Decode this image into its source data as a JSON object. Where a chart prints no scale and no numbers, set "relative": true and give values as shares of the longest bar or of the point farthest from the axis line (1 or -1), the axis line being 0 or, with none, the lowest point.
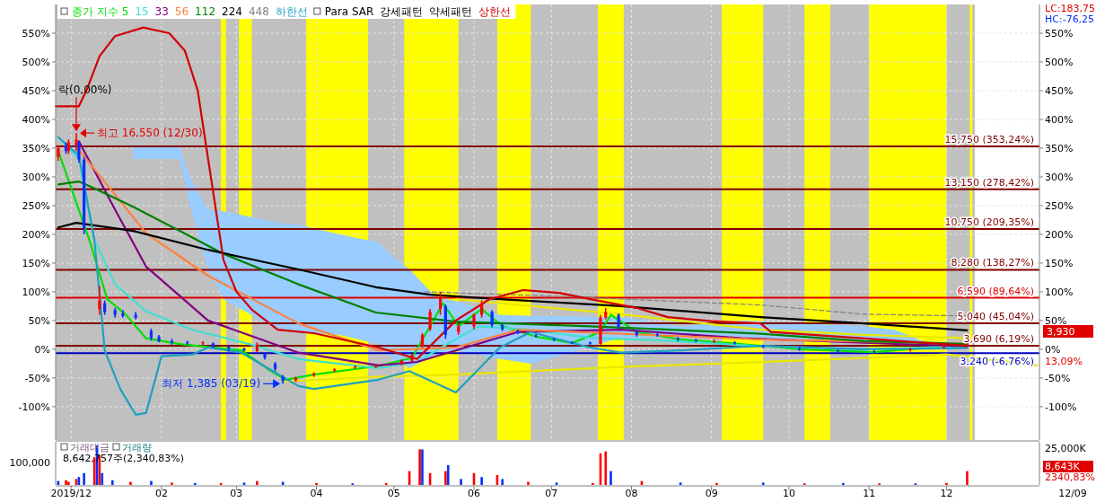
{
  "chart_data": [
    {
      "type": "candlestick",
      "xlim": [
        "2019-12-22",
        "2021-01-06"
      ],
      "xticks": [
        {
          "value": "2019-12-28",
          "label": null
        },
        {
          "value": "2020-02-01",
          "label": null
        },
        {
          "value": "2020-03-01",
          "label": null
        },
        {
          "value": "2020-04-01",
          "label": null
        },
        {
          "value": "2020-05-01",
          "label": null
        },
        {
          "value": "2020-06-01",
          "label": null
        },
        {
          "value": "2020-07-01",
          "label": null
        },
        {
          "value": "2020-08-01",
          "label": null
        },
        {
          "value": "2020-09-01",
          "label": null
        },
        {
          "value": "2020-10-01",
          "label": null
        },
        {
          "value": "2020-11-01",
          "label": null
        },
        {
          "value": "2020-12-01",
          "label": null
        }
      ],
      "ylim": [
        -158,
        600
      ],
      "yticks": [
        {
          "value": -100,
          "label": "-100%"
        },
        {
          "value": -50,
          "label": "-50%"
        },
        {
          "value": 0,
          "label": "0%"
        },
        {
          "value": 50,
          "label": "50%"
        },
        {
          "value": 100,
          "label": "100%"
        },
        {
          "value": 150,
          "label": "150%"
        },
        {
          "value": 200,
          "label": "200%"
        },
        {
          "value": 250,
          "label": "250%"
        },
        {
          "value": 300,
          "label": "300%"
        },
        {
          "value": 350,
          "label": "350%"
        },
        {
          "value": 400,
          "label": "400%"
        },
        {
          "value": 450,
          "label": "450%"
        },
        {
          "value": 500,
          "label": "500%"
        },
        {
          "value": 550,
          "label": "550%"
        }
      ],
      "y2lim": [
        -158,
        600
      ],
      "y2ticks": [
        {
          "value": -100,
          "label": "-100%"
        },
        {
          "value": -50,
          "label": "-50%"
        },
        {
          "value": 0,
          "label": "0%"
        },
        {
          "value": 50,
          "label": "50%"
        },
        {
          "value": 100,
          "label": "100%"
        },
        {
          "value": 150,
          "label": "150%"
        },
        {
          "value": 200,
          "label": "200%"
        },
        {
          "value": 250,
          "label": "250%"
        },
        {
          "value": 300,
          "label": "300%"
        },
        {
          "value": 350,
          "label": "350%"
        },
        {
          "value": 400,
          "label": "400%"
        },
        {
          "value": 450,
          "label": "450%"
        },
        {
          "value": 500,
          "label": "500%"
        },
        {
          "value": 550,
          "label": "550%"
        }
      ],
      "tick_labels": "y",
      "grid": true,
      "legend": "top left",
      "x": [
        "2019-12-23",
        "2019-12-26",
        "2019-12-27",
        "2019-12-30",
        "2019-12-31",
        "2020-01-02",
        "2020-01-08",
        "2020-01-10",
        "2020-01-14",
        "2020-01-17",
        "2020-01-22",
        "2020-01-28",
        "2020-01-31",
        "2020-02-05",
        "2020-02-11",
        "2020-02-17",
        "2020-02-21",
        "2020-02-27",
        "2020-03-04",
        "2020-03-09",
        "2020-03-12",
        "2020-03-16",
        "2020-03-19",
        "2020-03-24",
        "2020-03-31",
        "2020-04-08",
        "2020-04-16",
        "2020-04-24",
        "2020-05-04",
        "2020-05-08",
        "2020-05-12",
        "2020-05-15",
        "2020-05-19",
        "2020-05-21",
        "2020-05-26",
        "2020-06-01",
        "2020-06-04",
        "2020-06-08",
        "2020-06-12",
        "2020-06-18",
        "2020-06-25",
        "2020-07-02",
        "2020-07-09",
        "2020-07-16",
        "2020-07-20",
        "2020-07-22",
        "2020-07-27",
        "2020-08-03",
        "2020-08-11",
        "2020-08-19",
        "2020-08-26",
        "2020-09-02",
        "2020-09-10",
        "2020-09-21",
        "2020-10-05",
        "2020-10-20",
        "2020-11-03",
        "2020-11-17",
        "2020-11-30",
        "2020-12-09"
      ],
      "ohlc": [
        [
          335,
          355,
          328,
          350
        ],
        [
          355,
          360,
          340,
          345
        ],
        [
          345,
          365,
          340,
          360
        ],
        [
          355,
          376.3,
          345,
          365
        ],
        [
          360,
          362,
          325,
          330
        ],
        [
          330,
          335,
          200,
          210
        ],
        [
          70,
          110,
          60,
          85
        ],
        [
          80,
          85,
          60,
          65
        ],
        [
          68,
          72,
          55,
          60
        ],
        [
          62,
          68,
          55,
          58
        ],
        [
          60,
          65,
          52,
          55
        ],
        [
          32,
          36,
          15,
          20
        ],
        [
          22,
          25,
          12,
          14
        ],
        [
          14,
          18,
          8,
          12
        ],
        [
          12,
          15,
          8,
          11
        ],
        [
          11,
          14,
          7,
          12
        ],
        [
          10,
          12,
          2,
          4
        ],
        [
          4,
          6,
          -4,
          1
        ],
        [
          1,
          3,
          -4,
          -2
        ],
        [
          -3,
          12,
          -5,
          8
        ],
        [
          -8,
          -5,
          -18,
          -15
        ],
        [
          -25,
          -22,
          -38,
          -34
        ],
        [
          -48,
          -45,
          -60.1,
          -55
        ],
        [
          -54,
          -48,
          -57,
          -50
        ],
        [
          -45,
          -40,
          -48,
          -42
        ],
        [
          -37,
          -33,
          -40,
          -35
        ],
        [
          -32,
          -28,
          -34,
          -30
        ],
        [
          -30,
          -27,
          -33,
          -29
        ],
        [
          -24,
          -18,
          -28,
          -20
        ],
        [
          -20,
          -8,
          -22,
          -10
        ],
        [
          5,
          28,
          2,
          25
        ],
        [
          35,
          70,
          32,
          65
        ],
        [
          70,
          100,
          60,
          90
        ],
        [
          75,
          78,
          18,
          25
        ],
        [
          30,
          45,
          25,
          40
        ],
        [
          40,
          62,
          35,
          60
        ],
        [
          60,
          85,
          55,
          80
        ],
        [
          65,
          68,
          38,
          42
        ],
        [
          42,
          45,
          32,
          35
        ],
        [
          32,
          34,
          26,
          28
        ],
        [
          24,
          26,
          20,
          22
        ],
        [
          18,
          20,
          14,
          17
        ],
        [
          12,
          14,
          9,
          11
        ],
        [
          12,
          13,
          8,
          10
        ],
        [
          9,
          60,
          8,
          55
        ],
        [
          55,
          72,
          52,
          65
        ],
        [
          60,
          62,
          34,
          40
        ],
        [
          30,
          32,
          22,
          25
        ],
        [
          26,
          29,
          22,
          24
        ],
        [
          19,
          21,
          14,
          17
        ],
        [
          16,
          18,
          12,
          15
        ],
        [
          14,
          17,
          11,
          14
        ],
        [
          12,
          14,
          8,
          10
        ],
        [
          6,
          8,
          2,
          5
        ],
        [
          2,
          4,
          -3,
          0
        ],
        [
          -2,
          0,
          -6,
          -3
        ],
        [
          -4,
          -1,
          -8,
          -5
        ],
        [
          -1,
          2,
          -4,
          0
        ],
        [
          3,
          7,
          1,
          5
        ],
        [
          8,
          16,
          6,
          13.09
        ]
      ],
      "bands": [
        {
          "axis": "x",
          "from": "2019-12-22",
          "to": "2020-12-12",
          "color": "#c0c0c0"
        },
        {
          "axis": "x",
          "from": "2020-02-24",
          "to": "2020-02-26",
          "color": "#ffff00"
        },
        {
          "axis": "x",
          "from": "2020-03-02",
          "to": "2020-03-07",
          "color": "#ffff00"
        },
        {
          "axis": "x",
          "from": "2020-03-28",
          "to": "2020-04-21",
          "color": "#ffff00"
        },
        {
          "axis": "x",
          "from": "2020-05-05",
          "to": "2020-05-26",
          "color": "#ffff00"
        },
        {
          "axis": "x",
          "from": "2020-06-10",
          "to": "2020-06-23",
          "color": "#ffff00"
        },
        {
          "axis": "x",
          "from": "2020-07-19",
          "to": "2020-07-29",
          "color": "#ffff00"
        },
        {
          "axis": "x",
          "from": "2020-09-05",
          "to": "2020-09-21",
          "color": "#ffff00"
        },
        {
          "axis": "x",
          "from": "2020-10-07",
          "to": "2020-10-17",
          "color": "#ffff00"
        },
        {
          "axis": "x",
          "from": "2020-11-01",
          "to": "2020-12-01",
          "color": "#ffff00"
        },
        {
          "axis": "x",
          "from": "2020-12-10",
          "to": "2020-12-11",
          "color": "#ffff00"
        }
      ],
      "ref_lines": [
        {
          "axis": "y",
          "value": 353.24,
          "label": "15,750 (353,24%)",
          "color": "#800000"
        },
        {
          "axis": "y",
          "value": 278.42,
          "label": "13,150 (278,42%)",
          "color": "#800000"
        },
        {
          "axis": "y",
          "value": 209.35,
          "label": "10,750 (209,35%)",
          "color": "#800000"
        },
        {
          "axis": "y",
          "value": 138.27,
          "label": "8,280 (138,27%)",
          "color": "#800000"
        },
        {
          "axis": "y",
          "value": 89.64,
          "label": "6,590 (89,64%)",
          "color": "#e00000"
        },
        {
          "axis": "y",
          "value": 45.04,
          "label": "5,040 (45,04%)",
          "color": "#800000"
        },
        {
          "axis": "y",
          "value": 6.19,
          "label": "3,690 (6,19%)",
          "color": "#800000"
        },
        {
          "axis": "y",
          "value": -6.76,
          "label": "3,240 (-6,76%)",
          "color": "#0000c0"
        }
      ],
      "series": [
        {
          "type": "line",
          "color": "#99ccff",
          "x": [
            "2020-01-21",
            "2020-02-08",
            "2020-02-12",
            "2020-02-19",
            "2020-02-25",
            "2020-03-17",
            "2020-03-25",
            "2020-04-10",
            "2020-04-25",
            "2020-05-01",
            "2020-05-07",
            "2020-05-17",
            "2020-05-25",
            "2020-06-11",
            "2020-06-23",
            "2020-07-28",
            "2020-08-20",
            "2020-09-13",
            "2020-10-30",
            "2020-11-11",
            "2020-11-22",
            "2020-12-09"
          ],
          "values": [
            null,
            null,
            null,
            null,
            null,
            null,
            null,
            null,
            null,
            null,
            null,
            null,
            null,
            null,
            null,
            null,
            null,
            null,
            null,
            null,
            null,
            null
          ],
          "upper": [
            353,
            353,
            300,
            243,
            240,
            220,
            217,
            200,
            186,
            160,
            139,
            92,
            84,
            60,
            58,
            56,
            40,
            50,
            40,
            34,
            14,
            11
          ],
          "lower": [
            331,
            331,
            250,
            139,
            87,
            34,
            30,
            25,
            9,
            -20,
            -33,
            -10,
            -2,
            -17,
            -25,
            20,
            20,
            20,
            15,
            10,
            5,
            5
          ]
        },
        {
          "type": "line",
          "color": "#e8e800",
          "x": [
            "2020-05-25",
            "2020-07-28",
            "2020-09-20",
            "2020-10-30",
            "2020-12-09"
          ],
          "values": [
            87,
            61,
            34,
            25,
            19
          ]
        },
        {
          "type": "line",
          "color": "#e8e800",
          "x": [
            "2020-03-20",
            "2020-04-25",
            "2020-05-25",
            "2020-06-23",
            "2020-08-01",
            "2020-09-04",
            "2020-10-15",
            "2020-12-01",
            "2021-01-05"
          ],
          "values": [
            -56,
            -48,
            -44,
            -38,
            -30,
            -25,
            -18,
            -9,
            -28
          ]
        },
        {
          "name": "종가 지수 5",
          "type": "line",
          "color": "#00e000",
          "x": [
            "2019-12-23",
            "2020-01-04",
            "2020-01-11",
            "2020-01-18",
            "2020-01-26",
            "2020-02-08",
            "2020-03-03",
            "2020-03-14",
            "2020-03-20",
            "2020-03-31",
            "2020-04-25",
            "2020-05-08",
            "2020-05-15",
            "2020-05-20",
            "2020-05-26",
            "2020-06-04",
            "2020-06-12",
            "2020-06-25",
            "2020-07-09",
            "2020-07-20",
            "2020-07-24",
            "2020-08-03",
            "2020-08-20",
            "2020-09-10",
            "2020-10-05",
            "2020-11-03",
            "2020-11-30",
            "2020-12-09"
          ],
          "values": [
            345,
            191,
            87,
            61,
            19,
            9,
            -2,
            -37,
            -53,
            -44,
            -29,
            -15,
            40,
            80,
            40,
            70,
            40,
            22,
            11,
            30,
            60,
            30,
            17,
            10,
            0,
            -5,
            5,
            10
          ]
        },
        {
          "name": "15",
          "type": "line",
          "color": "#40e0d0",
          "x": [
            "2019-12-23",
            "2019-12-31",
            "2020-01-06",
            "2020-01-14",
            "2020-01-26",
            "2020-02-13",
            "2020-03-06",
            "2020-03-25",
            "2020-04-25",
            "2020-05-10",
            "2020-05-22",
            "2020-06-03",
            "2020-06-20",
            "2020-07-16",
            "2020-08-15",
            "2020-09-20",
            "2020-10-30",
            "2020-12-09"
          ],
          "values": [
            369,
            331,
            191,
            113,
            66,
            34,
            9,
            -17,
            -33,
            -22,
            10,
            40,
            35,
            20,
            15,
            5,
            0,
            5
          ]
        },
        {
          "name": "33",
          "type": "line",
          "color": "#800080",
          "x": [
            "2019-12-31",
            "2020-01-14",
            "2020-01-26",
            "2020-02-19",
            "2020-03-25",
            "2020-04-25",
            "2020-05-10",
            "2020-05-25",
            "2020-06-18",
            "2020-07-28",
            "2020-09-13",
            "2020-12-09"
          ],
          "values": [
            362,
            243,
            144,
            50,
            -6,
            -28,
            -22,
            -2,
            30,
            34,
            19,
            5
          ]
        },
        {
          "name": "56",
          "type": "line",
          "color": "#ff8040",
          "x": [
            "2019-12-31",
            "2020-01-26",
            "2020-02-19",
            "2020-03-25",
            "2020-04-25",
            "2020-05-25",
            "2020-06-18",
            "2020-07-28",
            "2020-09-20",
            "2020-12-09"
          ],
          "values": [
            347,
            202,
            128,
            45,
            -2,
            3,
            34,
            27,
            17,
            10
          ]
        },
        {
          "name": "112",
          "type": "line",
          "color": "#008000",
          "x": [
            "2019-12-23",
            "2019-12-31",
            "2020-01-06",
            "2020-01-21",
            "2020-02-08",
            "2020-02-25",
            "2020-03-25",
            "2020-04-24",
            "2020-05-25",
            "2020-07-16",
            "2020-09-20",
            "2020-10-30",
            "2020-12-09"
          ],
          "values": [
            287,
            292,
            280,
            248,
            206,
            166,
            113,
            64,
            48,
            40,
            27,
            14,
            9
          ]
        },
        {
          "name": "224",
          "type": "line",
          "color": "#000000",
          "x": [
            "2019-12-23",
            "2019-12-30",
            "2020-01-21",
            "2020-02-19",
            "2020-03-25",
            "2020-04-24",
            "2020-05-15",
            "2020-06-11",
            "2020-07-28",
            "2020-09-20",
            "2020-10-30",
            "2020-12-09"
          ],
          "values": [
            212,
            220,
            206,
            173,
            139,
            108,
            95,
            87,
            75,
            56,
            45,
            33
          ]
        },
        {
          "name": "448",
          "type": "line",
          "color": "#808080",
          "line_style": "dashed",
          "x": [
            "2020-05-13",
            "2020-07-04",
            "2020-09-20",
            "2020-10-30",
            "2020-12-09"
          ],
          "values": [
            100,
            92,
            77,
            61,
            58
          ]
        },
        {
          "name": "하한선",
          "type": "line",
          "color": "#20a0c0",
          "x": [
            "2019-12-23",
            "2019-12-31",
            "2020-01-06",
            "2020-01-10",
            "2020-01-16",
            "2020-01-22",
            "2020-01-26",
            "2020-02-01",
            "2020-02-13",
            "2020-02-19",
            "2020-03-03",
            "2020-03-25",
            "2020-03-31",
            "2020-04-25",
            "2020-05-07",
            "2020-05-25",
            "2020-06-11",
            "2020-06-23",
            "2020-07-16",
            "2020-07-28",
            "2020-08-20",
            "2020-09-20",
            "2020-10-30",
            "2020-12-09"
          ],
          "values": [
            369,
            337,
            191,
            -2,
            -69,
            -114,
            -111,
            -12,
            -9,
            3,
            -6,
            -64,
            -69,
            -53,
            -38,
            -75,
            3,
            30,
            3,
            -6,
            -2,
            6,
            0,
            2
          ]
        },
        {
          "name": "상한선",
          "type": "line",
          "color": "#d00000",
          "x": [
            "2019-12-22",
            "2019-12-31",
            "2020-01-03",
            "2020-01-08",
            "2020-01-14",
            "2020-01-25",
            "2020-02-04",
            "2020-02-10",
            "2020-02-15",
            "2020-02-25",
            "2020-03-01",
            "2020-03-07",
            "2020-03-17",
            "2020-03-31",
            "2020-04-25",
            "2020-05-10",
            "2020-05-25",
            "2020-06-07",
            "2020-06-20",
            "2020-07-04",
            "2020-07-16",
            "2020-08-03",
            "2020-08-15",
            "2020-09-01",
            "2020-09-20",
            "2020-09-24",
            "2020-10-29",
            "2020-12-09"
          ],
          "values": [
            423,
            423,
            451,
            510,
            545,
            560,
            550,
            520,
            451,
            155,
            100,
            69,
            34,
            28,
            3,
            -17,
            50,
            87,
            103,
            98,
            87,
            72,
            56,
            49,
            45,
            30,
            19,
            6
          ]
        }
      ],
      "annotations": [
        "Para SAR",
        "강세패턴",
        "약세패턴",
        "LC:183,75",
        "HC:-76,25",
        "3,930",
        "13,09%",
        {
          "text": "락(0,00%)",
          "x": "2019-12-30",
          "y": 376.3
        },
        {
          "text": "최고 16,550 (12/30)",
          "x": "2019-12-30",
          "y": 376.3
        },
        {
          "text": "최저 1,385 (03/19)",
          "x": "2020-03-19",
          "y": -60.1
        }
      ]
    },
    {
      "type": "bar",
      "relative": true,
      "tick_labels": "x",
      "xlim": [
        "2019-12-22",
        "2021-01-06"
      ],
      "xticks": [
        {
          "value": "2019-12-28",
          "label": "2019/12"
        },
        {
          "value": "2020-02-01",
          "label": "02"
        },
        {
          "value": "2020-03-01",
          "label": "03"
        },
        {
          "value": "2020-04-01",
          "label": "04"
        },
        {
          "value": "2020-05-01",
          "label": "05"
        },
        {
          "value": "2020-06-01",
          "label": "06"
        },
        {
          "value": "2020-07-01",
          "label": "07"
        },
        {
          "value": "2020-08-01",
          "label": "08"
        },
        {
          "value": "2020-09-01",
          "label": "09"
        },
        {
          "value": "2020-10-01",
          "label": "10"
        },
        {
          "value": "2020-11-01",
          "label": "11"
        },
        {
          "value": "2020-12-01",
          "label": "12"
        }
      ],
      "x": [
        "2019-12-23",
        "2019-12-26",
        "2019-12-27",
        "2019-12-30",
        "2019-12-31",
        "2020-01-02",
        "2020-01-06",
        "2020-01-07",
        "2020-01-08",
        "2020-01-09",
        "2020-01-13",
        "2020-01-20",
        "2020-01-28",
        "2020-02-05",
        "2020-02-14",
        "2020-02-24",
        "2020-03-04",
        "2020-03-09",
        "2020-03-19",
        "2020-04-01",
        "2020-04-15",
        "2020-04-28",
        "2020-05-07",
        "2020-05-11",
        "2020-05-12",
        "2020-05-15",
        "2020-05-21",
        "2020-05-22",
        "2020-05-27",
        "2020-06-01",
        "2020-06-04",
        "2020-06-10",
        "2020-06-12",
        "2020-06-22",
        "2020-07-03",
        "2020-07-17",
        "2020-07-20",
        "2020-07-22",
        "2020-07-24",
        "2020-08-05",
        "2020-08-20",
        "2020-09-03",
        "2020-09-21",
        "2020-10-07",
        "2020-10-22",
        "2020-11-05",
        "2020-11-19",
        "2020-12-01",
        "2020-12-09"
      ],
      "values": [
        0.1,
        0.12,
        0.08,
        0.15,
        0.2,
        0.3,
        0.7,
        1,
        0.75,
        0.3,
        0.12,
        0.08,
        0.1,
        0.06,
        0.05,
        0.05,
        0.06,
        0.1,
        0.08,
        0.05,
        0.04,
        0.05,
        0.35,
        0.9,
        0.9,
        0.3,
        0.35,
        0.5,
        0.15,
        0.3,
        0.2,
        0.25,
        0.15,
        0.08,
        0.06,
        0.05,
        0.8,
        0.85,
        0.35,
        0.1,
        0.06,
        0.05,
        0.06,
        0.04,
        0.05,
        0.04,
        0.04,
        0.05,
        0.35
      ],
      "colors": [
        "#0030ff",
        "#ff0000",
        "#ff0000",
        "#ff0000",
        "#0030ff",
        "#0030ff",
        "#ff0000",
        "#0030ff",
        "#ff0000",
        "#0030ff",
        "#0030ff",
        "#ff0000",
        "#0030ff",
        "#ff0000",
        "#0030ff",
        "#ff0000",
        "#0030ff",
        "#ff0000",
        "#0030ff",
        "#ff0000",
        "#0030ff",
        "#ff0000",
        "#ff0000",
        "#ff0000",
        "#0030ff",
        "#ff0000",
        "#ff0000",
        "#0030ff",
        "#0030ff",
        "#ff0000",
        "#0030ff",
        "#ff0000",
        "#0030ff",
        "#ff0000",
        "#0030ff",
        "#ff0000",
        "#ff0000",
        "#ff0000",
        "#0030ff",
        "#ff0000",
        "#0030ff",
        "#ff0000",
        "#0030ff",
        "#ff0000",
        "#0030ff",
        "#ff0000",
        "#0030ff",
        "#ff0000",
        "#ff0000"
      ],
      "annotations": [
        "거래대금",
        "거래량",
        "8,642,757주(2,340,83%)",
        "100,000",
        "25,000K",
        "8,643K",
        "2340,83%",
        "12/09"
      ]
    }
  ]
}
